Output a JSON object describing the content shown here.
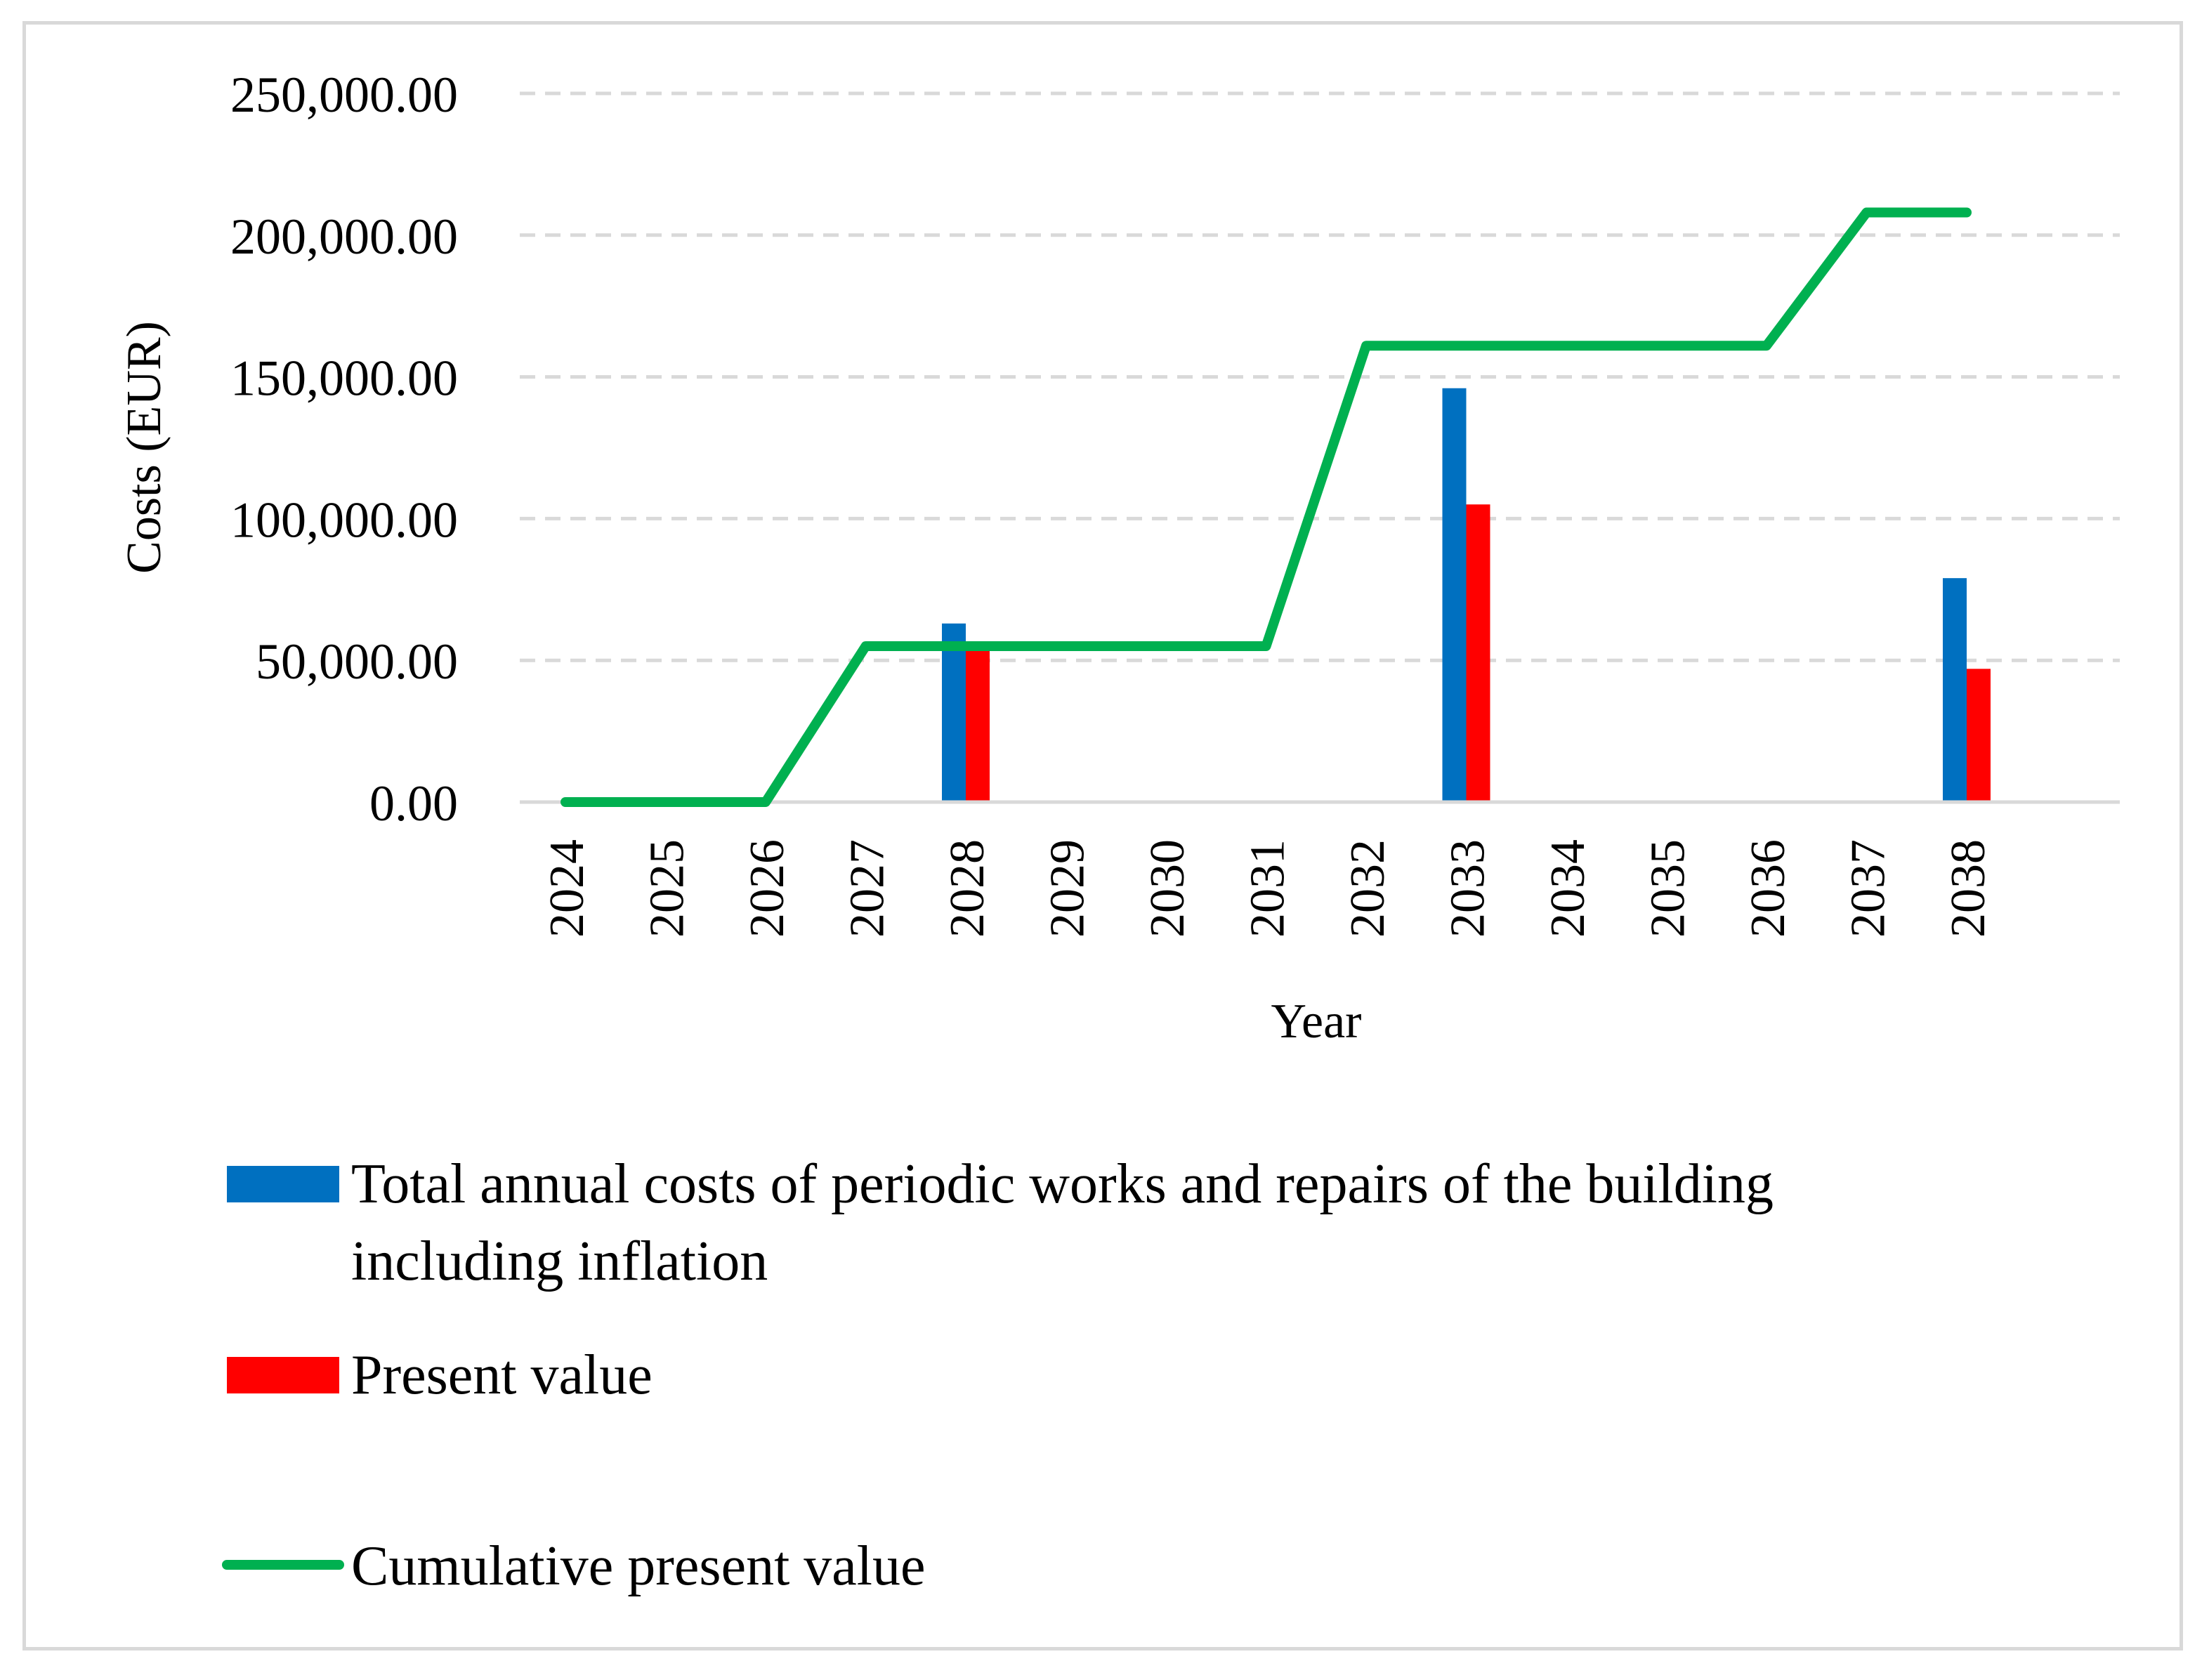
{
  "chart_data": {
    "type": "bar",
    "title": "",
    "xlabel": "Year",
    "ylabel": "Costs (EUR)",
    "ylim": [
      0,
      250000
    ],
    "yticks": [
      0,
      50000,
      100000,
      150000,
      200000,
      250000
    ],
    "ytick_labels": [
      "0.00",
      "50,000.00",
      "100,000.00",
      "150,000.00",
      "200,000.00",
      "250,000.00"
    ],
    "categories": [
      "2024",
      "2025",
      "2026",
      "2027",
      "2028",
      "2029",
      "2030",
      "2031",
      "2032",
      "2033",
      "2034",
      "2035",
      "2036",
      "2037",
      "2038"
    ],
    "grid": "horizontal dashed",
    "legend_position": "bottom",
    "series": [
      {
        "name": "Total annual costs of periodic works and repairs of the building including inflation",
        "legend_lines": [
          "Total annual costs of periodic works and repairs of the building",
          "including inflation"
        ],
        "kind": "bar",
        "color": "#0070c0",
        "values": [
          0,
          0,
          0,
          0,
          63000,
          0,
          0,
          0,
          0,
          146000,
          0,
          0,
          0,
          0,
          79000
        ]
      },
      {
        "name": "Present value",
        "kind": "bar",
        "color": "#ff0000",
        "values": [
          0,
          0,
          0,
          0,
          54000,
          0,
          0,
          0,
          0,
          105000,
          0,
          0,
          0,
          0,
          47000
        ]
      },
      {
        "name": "Cumulative present value",
        "kind": "line",
        "color": "#00b050",
        "values": [
          0,
          0,
          0,
          55000,
          55000,
          55000,
          55000,
          55000,
          161000,
          161000,
          161000,
          161000,
          161000,
          208000,
          208000
        ]
      }
    ]
  }
}
